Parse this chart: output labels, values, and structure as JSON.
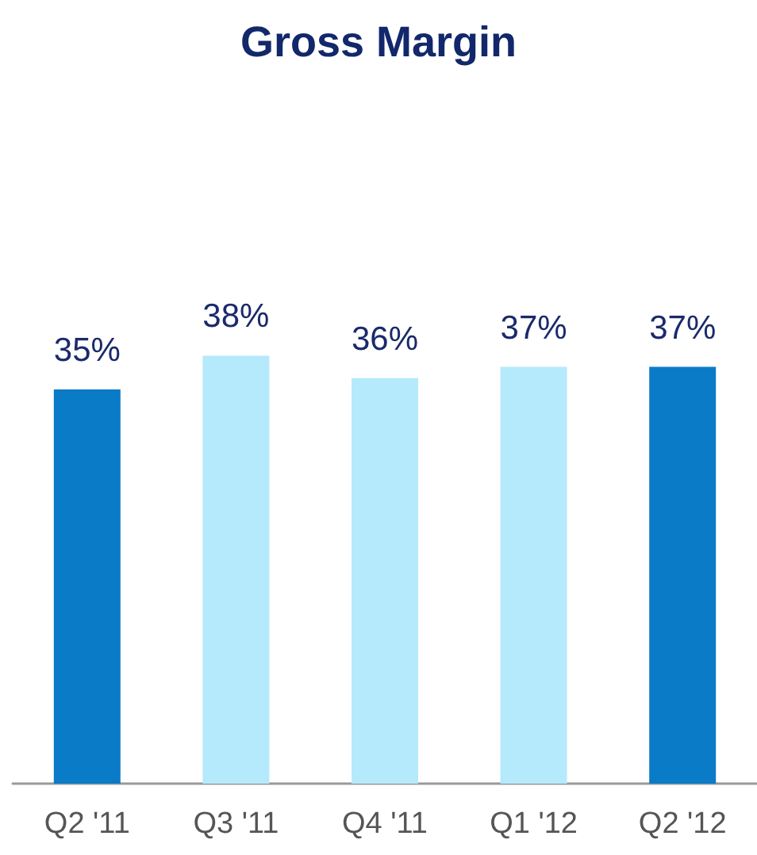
{
  "chart_data": {
    "type": "bar",
    "title": "Gross Margin",
    "categories": [
      "Q2 '11",
      "Q3 '11",
      "Q4 '11",
      "Q1 '12",
      "Q2 '12"
    ],
    "values": [
      35,
      38,
      36,
      37,
      37
    ],
    "colors": [
      "#0a7bc7",
      "#b5e9fc",
      "#b5e9fc",
      "#b5e9fc",
      "#0a7bc7"
    ],
    "value_labels": [
      "35%",
      "38%",
      "36%",
      "37%",
      "37%"
    ]
  }
}
